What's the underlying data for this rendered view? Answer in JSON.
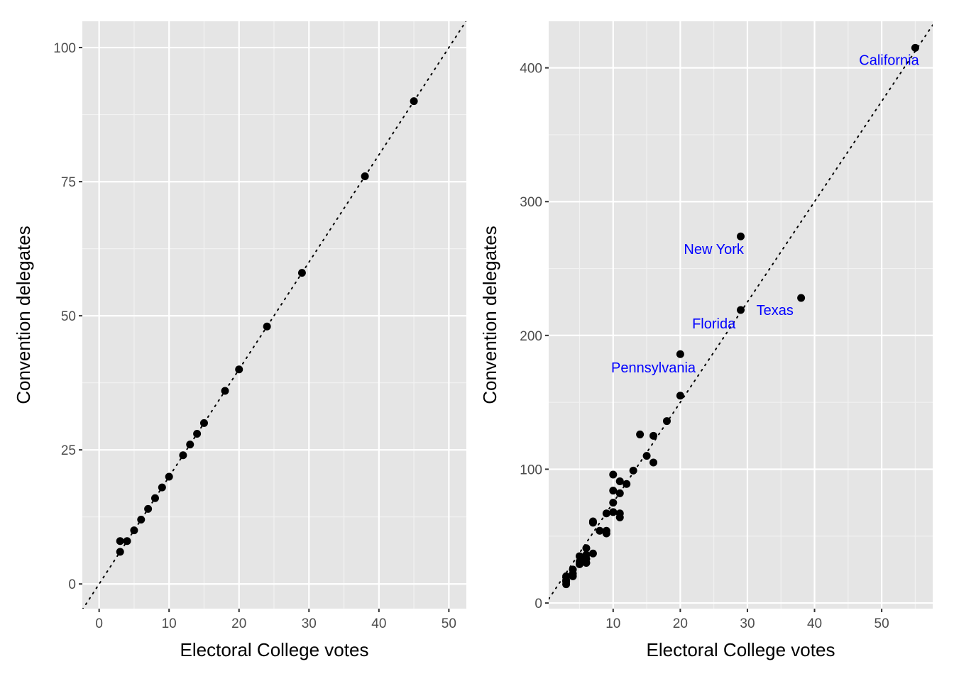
{
  "chart_data": [
    {
      "type": "scatter",
      "xlabel": "Electoral College votes",
      "ylabel": "Convention delegates",
      "xlim": [
        -2.4,
        52.5
      ],
      "ylim": [
        -4.6,
        104.9
      ],
      "xticks": [
        0,
        10,
        20,
        30,
        40,
        50
      ],
      "yticks": [
        0,
        25,
        50,
        75,
        100
      ],
      "xtick_labels": [
        "0",
        "10",
        "20",
        "30",
        "40",
        "50"
      ],
      "ytick_labels": [
        "0",
        "25",
        "50",
        "75",
        "100"
      ],
      "grid": true,
      "reference_line": {
        "style": "dotted",
        "slope": 2,
        "intercept": 0
      },
      "points": [
        [
          3,
          8
        ],
        [
          3,
          6
        ],
        [
          4,
          8
        ],
        [
          5,
          10
        ],
        [
          6,
          12
        ],
        [
          7,
          14
        ],
        [
          8,
          16
        ],
        [
          9,
          18
        ],
        [
          10,
          20
        ],
        [
          12,
          24
        ],
        [
          13,
          26
        ],
        [
          14,
          28
        ],
        [
          15,
          30
        ],
        [
          18,
          36
        ],
        [
          20,
          40
        ],
        [
          24,
          48
        ],
        [
          29,
          58
        ],
        [
          38,
          76
        ],
        [
          45,
          90
        ]
      ]
    },
    {
      "type": "scatter",
      "xlabel": "Electoral College votes",
      "ylabel": "Convention delegates",
      "xlim": [
        0.4,
        57.6
      ],
      "ylim": [
        -4.2,
        434.8
      ],
      "xticks": [
        10,
        20,
        30,
        40,
        50
      ],
      "yticks": [
        0,
        100,
        200,
        300,
        400
      ],
      "xtick_labels": [
        "10",
        "20",
        "30",
        "40",
        "50"
      ],
      "ytick_labels": [
        "0",
        "100",
        "200",
        "300",
        "400"
      ],
      "grid": true,
      "reference_line": {
        "style": "dotted",
        "slope": 7.5,
        "intercept": 0
      },
      "points": [
        [
          55,
          415
        ],
        [
          29,
          274
        ],
        [
          38,
          228
        ],
        [
          29,
          219
        ],
        [
          20,
          186
        ],
        [
          20,
          155
        ],
        [
          18,
          136
        ],
        [
          16,
          125
        ],
        [
          16,
          105
        ],
        [
          15,
          110
        ],
        [
          14,
          126
        ],
        [
          13,
          99
        ],
        [
          12,
          89
        ],
        [
          11,
          91
        ],
        [
          11,
          82
        ],
        [
          11,
          67
        ],
        [
          11,
          64
        ],
        [
          10,
          96
        ],
        [
          10,
          84
        ],
        [
          10,
          75
        ],
        [
          10,
          68
        ],
        [
          9,
          67
        ],
        [
          9,
          54
        ],
        [
          9,
          52
        ],
        [
          8,
          54
        ],
        [
          7,
          60
        ],
        [
          7,
          61
        ],
        [
          7,
          37
        ],
        [
          6,
          41
        ],
        [
          6,
          36
        ],
        [
          6,
          33
        ],
        [
          6,
          30
        ],
        [
          5,
          35
        ],
        [
          5,
          29
        ],
        [
          5,
          31
        ],
        [
          4,
          25
        ],
        [
          4,
          22
        ],
        [
          4,
          20
        ],
        [
          3,
          20
        ],
        [
          3,
          17
        ],
        [
          3,
          14
        ],
        [
          3,
          16
        ]
      ],
      "annotations": [
        {
          "text": "California",
          "x": 51.1,
          "y": 406
        },
        {
          "text": "New York",
          "x": 25,
          "y": 264.6
        },
        {
          "text": "Texas",
          "x": 34.1,
          "y": 219
        },
        {
          "text": "Florida",
          "x": 25,
          "y": 209
        },
        {
          "text": "Pennsylvania",
          "x": 16,
          "y": 176
        }
      ],
      "annotation_color": "#0000ff"
    }
  ]
}
